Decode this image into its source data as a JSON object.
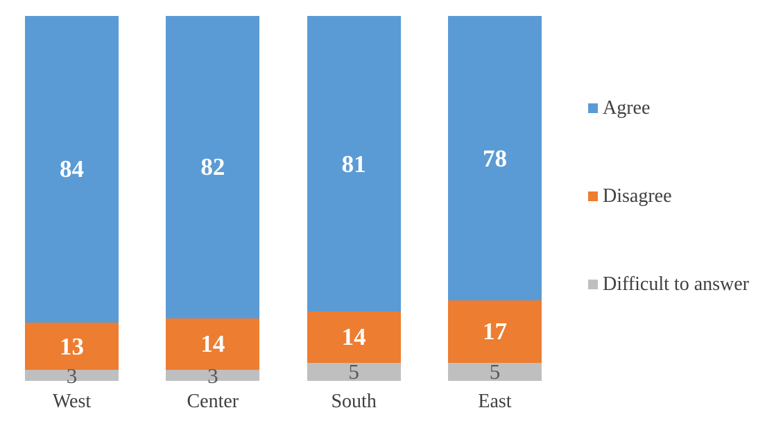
{
  "chart_data": {
    "type": "bar",
    "subtype": "stacked-100-column",
    "title": "",
    "xlabel": "",
    "ylabel": "",
    "grid": false,
    "axes_visible": false,
    "legend_position": "right",
    "background_color": "#FFFFFF",
    "text_color": "#404040",
    "categories": [
      "West",
      "Center",
      "South",
      "East"
    ],
    "series": [
      {
        "name": "Agree",
        "color": "#5B9BD5",
        "label_color": "#FFFFFF",
        "values": [
          84,
          82,
          81,
          78
        ]
      },
      {
        "name": "Disagree",
        "color": "#ED7D31",
        "label_color": "#FFFFFF",
        "values": [
          13,
          14,
          14,
          17
        ]
      },
      {
        "name": "Difficult to answer",
        "color": "#BFBFBF",
        "label_color": "#595959",
        "values": [
          3,
          3,
          5,
          5
        ]
      }
    ]
  }
}
